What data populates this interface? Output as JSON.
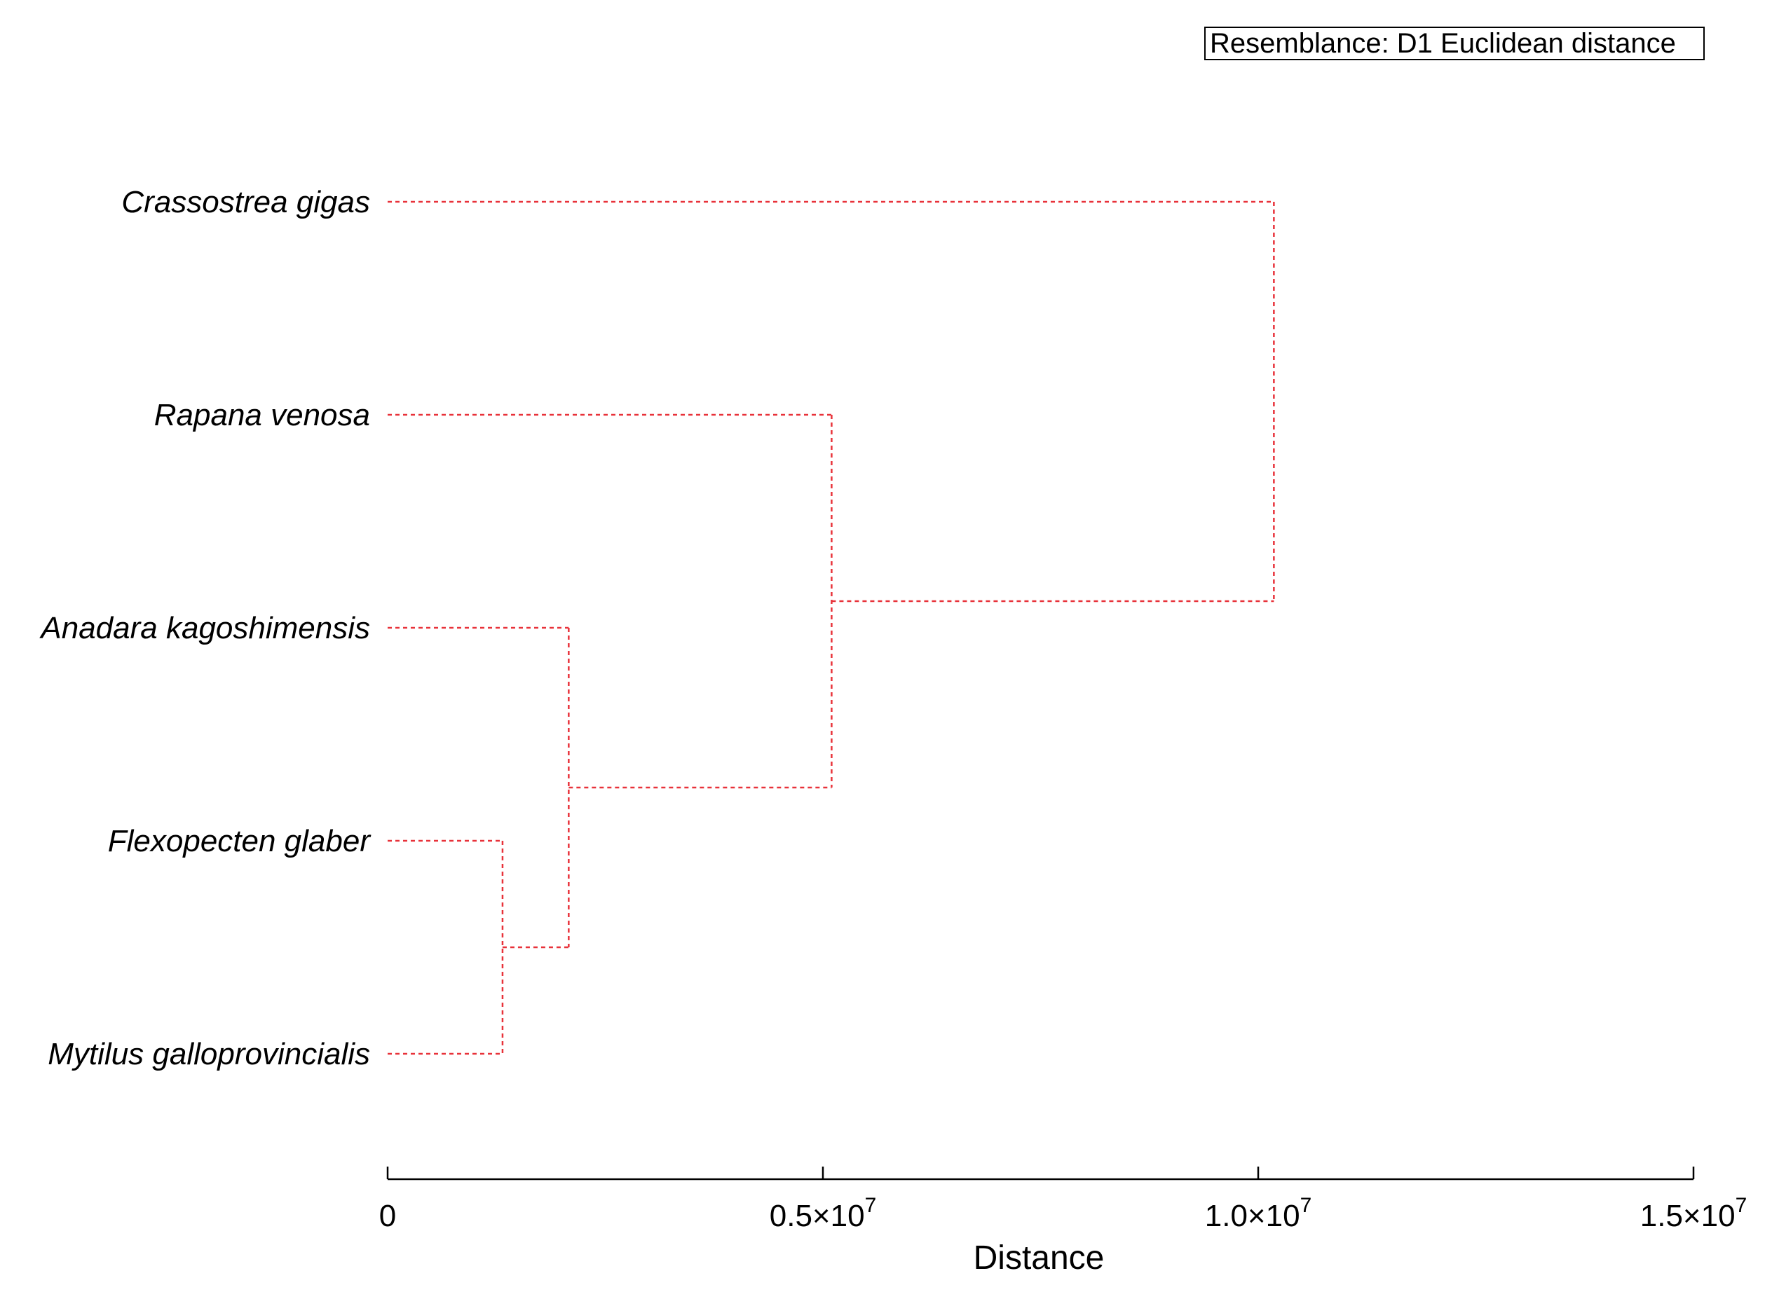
{
  "legend": {
    "text": "Resemblance: D1 Euclidean distance"
  },
  "chart_data": {
    "type": "dendrogram",
    "title": "",
    "xlabel": "Distance",
    "ylabel": "",
    "xlim": [
      0,
      15000000
    ],
    "x_ticks": [
      {
        "value": 0,
        "label": "0",
        "sup": ""
      },
      {
        "value": 5000000,
        "label": "0.5×10",
        "sup": "7"
      },
      {
        "value": 10000000,
        "label": "1.0×10",
        "sup": "7"
      },
      {
        "value": 15000000,
        "label": "1.5×10",
        "sup": "7"
      }
    ],
    "leaves": [
      "Crassostrea gigas",
      "Rapana venosa",
      "Anadara kagoshimensis",
      "Flexopecten glaber",
      "Mytilus galloprovincialis"
    ],
    "merges": [
      {
        "members": [
          "Flexopecten glaber",
          "Mytilus galloprovincialis"
        ],
        "distance": 1320000
      },
      {
        "members": [
          "Anadara kagoshimensis",
          "Flexopecten glaber",
          "Mytilus galloprovincialis"
        ],
        "distance": 2080000
      },
      {
        "members": [
          "Rapana venosa",
          "Anadara kagoshimensis",
          "Flexopecten glaber",
          "Mytilus galloprovincialis"
        ],
        "distance": 5100000
      },
      {
        "members": [
          "Crassostrea gigas",
          "Rapana venosa",
          "Anadara kagoshimensis",
          "Flexopecten glaber",
          "Mytilus galloprovincialis"
        ],
        "distance": 10180000
      }
    ],
    "branch_color": "#e8323a",
    "grid": false
  }
}
